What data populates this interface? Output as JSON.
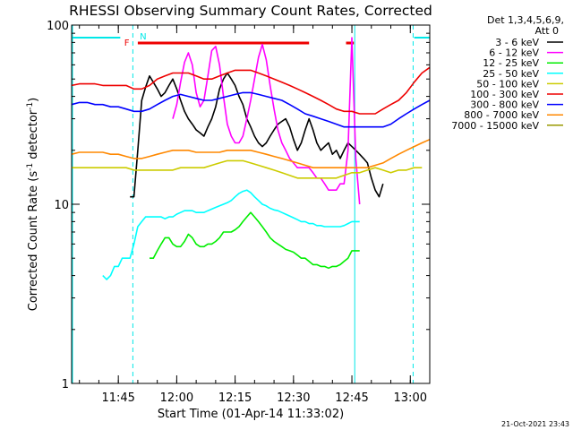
{
  "chart_data": {
    "type": "line",
    "title": "RHESSI Observing Summary Count Rates, Corrected",
    "xlabel": "Start Time (01-Apr-14 11:33:02)",
    "ylabel": {
      "main": "Corrected Count Rate (s",
      "sup1": "-1",
      "mid": " detector",
      "sup2": "-1",
      "end": ")"
    },
    "x_unit": "minutes after 11:33:02",
    "xlim": [
      0,
      92
    ],
    "ylim": [
      1,
      100
    ],
    "y_scale": "log",
    "x_ticks": [
      {
        "x": 12,
        "label": "11:45"
      },
      {
        "x": 27,
        "label": "12:00"
      },
      {
        "x": 42,
        "label": "12:15"
      },
      {
        "x": 57,
        "label": "12:30"
      },
      {
        "x": 72,
        "label": "12:45"
      },
      {
        "x": 87,
        "label": "13:00"
      }
    ],
    "y_ticks": [
      {
        "y": 1,
        "label": "1"
      },
      {
        "y": 10,
        "label": "10"
      },
      {
        "y": 100,
        "label": "100"
      }
    ],
    "legend_header": [
      "Det 1,3,4,5,6,9,",
      "Att 0"
    ],
    "legend_position": "right",
    "grid": false,
    "annotations": {
      "flare_label": "F",
      "night_label": "N",
      "flare_bar_color": "#ee0000",
      "night_bar_color": "#00e8e8"
    },
    "timestamp": "21-Oct-2021 23:43",
    "series": [
      {
        "name": "3 - 6 keV",
        "color": "#000000",
        "x": [
          15,
          16,
          17,
          18,
          19,
          20,
          21,
          22,
          23,
          24,
          25,
          26,
          27,
          28,
          29,
          30,
          31,
          32,
          33,
          34,
          35,
          36,
          37,
          38,
          39,
          40,
          41,
          42,
          43,
          44,
          45,
          46,
          47,
          48,
          49,
          50,
          51,
          52,
          53,
          54,
          55,
          56,
          57,
          58,
          59,
          60,
          61,
          62,
          63,
          64,
          65,
          66,
          67,
          68,
          69,
          70,
          71,
          72,
          73,
          74,
          75,
          76,
          77,
          78,
          79,
          80
        ],
        "y": [
          11,
          11,
          20,
          38,
          45,
          52,
          48,
          44,
          40,
          42,
          46,
          50,
          44,
          38,
          33,
          30,
          28,
          26,
          25,
          24,
          27,
          30,
          35,
          44,
          50,
          54,
          50,
          46,
          40,
          36,
          30,
          27,
          24,
          22,
          21,
          22,
          24,
          26,
          28,
          29,
          30,
          27,
          23,
          20,
          22,
          26,
          30,
          26,
          22,
          20,
          21,
          22,
          19,
          20,
          18,
          20,
          22,
          21,
          20,
          19,
          18,
          17,
          14,
          12,
          11,
          13
        ]
      },
      {
        "name": "6 - 12 keV",
        "color": "#ff00ff",
        "x": [
          26,
          27,
          28,
          29,
          30,
          31,
          32,
          33,
          34,
          35,
          36,
          37,
          38,
          39,
          40,
          41,
          42,
          43,
          44,
          45,
          46,
          47,
          48,
          49,
          50,
          51,
          52,
          53,
          54,
          55,
          56,
          57,
          58,
          59,
          60,
          61,
          62,
          63,
          64,
          65,
          66,
          67,
          68,
          69,
          70,
          71,
          72,
          73,
          74
        ],
        "y": [
          30,
          36,
          48,
          62,
          70,
          60,
          42,
          35,
          38,
          52,
          72,
          76,
          60,
          40,
          28,
          24,
          22,
          22,
          24,
          30,
          38,
          50,
          66,
          78,
          64,
          46,
          34,
          26,
          22,
          20,
          18,
          17,
          16,
          16,
          16,
          16,
          15,
          14,
          14,
          13,
          12,
          12,
          12,
          13,
          13,
          20,
          85,
          18,
          10
        ]
      },
      {
        "name": "12 - 25 keV",
        "color": "#00ee00",
        "x": [
          20,
          21,
          22,
          23,
          24,
          25,
          26,
          27,
          28,
          29,
          30,
          31,
          32,
          33,
          34,
          35,
          36,
          37,
          38,
          39,
          40,
          41,
          42,
          43,
          44,
          45,
          46,
          47,
          48,
          49,
          50,
          51,
          52,
          53,
          54,
          55,
          56,
          57,
          58,
          59,
          60,
          61,
          62,
          63,
          64,
          65,
          66,
          67,
          68,
          69,
          70,
          71,
          72,
          73,
          74
        ],
        "y": [
          5,
          5,
          5.5,
          6,
          6.5,
          6.5,
          6,
          5.8,
          5.8,
          6.2,
          6.8,
          6.5,
          6,
          5.8,
          5.8,
          6,
          6,
          6.2,
          6.5,
          7,
          7,
          7,
          7.2,
          7.5,
          8,
          8.5,
          9,
          8.5,
          8,
          7.5,
          7,
          6.5,
          6.2,
          6,
          5.8,
          5.6,
          5.5,
          5.4,
          5.2,
          5,
          5,
          4.8,
          4.6,
          4.6,
          4.5,
          4.5,
          4.4,
          4.5,
          4.5,
          4.6,
          4.8,
          5,
          5.5,
          5.5,
          5.5
        ]
      },
      {
        "name": "25 - 50 keV",
        "color": "#00ffff",
        "x": [
          8,
          9,
          10,
          11,
          12,
          13,
          14,
          15,
          16,
          17,
          18,
          19,
          20,
          21,
          22,
          23,
          24,
          25,
          26,
          27,
          28,
          29,
          30,
          31,
          32,
          33,
          34,
          35,
          36,
          37,
          38,
          39,
          40,
          41,
          42,
          43,
          44,
          45,
          46,
          47,
          48,
          49,
          50,
          51,
          52,
          53,
          54,
          55,
          56,
          57,
          58,
          59,
          60,
          61,
          62,
          63,
          64,
          65,
          66,
          67,
          68,
          69,
          70,
          71,
          72,
          73,
          74
        ],
        "y": [
          4,
          3.8,
          4,
          4.5,
          4.5,
          5,
          5,
          5,
          6,
          7.5,
          8,
          8.5,
          8.5,
          8.5,
          8.5,
          8.5,
          8.3,
          8.5,
          8.5,
          8.8,
          9,
          9.2,
          9.2,
          9.2,
          9,
          9,
          9,
          9.2,
          9.4,
          9.6,
          9.8,
          10,
          10.2,
          10.5,
          11,
          11.5,
          11.8,
          12,
          11.6,
          11,
          10.5,
          10,
          9.8,
          9.5,
          9.3,
          9.2,
          9,
          8.8,
          8.6,
          8.4,
          8.2,
          8,
          8,
          7.8,
          7.8,
          7.6,
          7.6,
          7.5,
          7.5,
          7.5,
          7.5,
          7.5,
          7.6,
          7.8,
          8,
          8,
          8
        ]
      },
      {
        "name": "50 - 100 keV",
        "color": "#cccc00",
        "x": [
          0,
          2,
          4,
          6,
          8,
          10,
          12,
          14,
          16,
          18,
          20,
          22,
          24,
          26,
          28,
          30,
          32,
          34,
          36,
          38,
          40,
          42,
          44,
          46,
          48,
          50,
          52,
          54,
          56,
          58,
          60,
          62,
          64,
          66,
          68,
          70,
          72,
          74,
          76,
          78,
          80,
          82,
          84,
          86,
          88,
          90
        ],
        "y": [
          16,
          16,
          16,
          16,
          16,
          16,
          16,
          16,
          15.5,
          15.5,
          15.5,
          15.5,
          15.5,
          15.5,
          16,
          16,
          16,
          16,
          16.5,
          17,
          17.5,
          17.5,
          17.5,
          17,
          16.5,
          16,
          15.5,
          15,
          14.5,
          14,
          14,
          14,
          14,
          14,
          14,
          14.5,
          15,
          15,
          15.5,
          16,
          15.5,
          15,
          15.5,
          15.5,
          16,
          16
        ]
      },
      {
        "name": "100 - 300 keV",
        "color": "#ee0000",
        "x": [
          0,
          2,
          4,
          6,
          8,
          10,
          12,
          14,
          16,
          18,
          20,
          22,
          24,
          26,
          28,
          30,
          32,
          34,
          36,
          38,
          40,
          42,
          44,
          46,
          48,
          50,
          52,
          54,
          56,
          58,
          60,
          62,
          64,
          66,
          68,
          70,
          72,
          74,
          76,
          78,
          80,
          82,
          84,
          86,
          88,
          90,
          92
        ],
        "y": [
          46,
          47,
          47,
          47,
          46,
          46,
          46,
          46,
          44,
          44,
          46,
          50,
          52,
          54,
          54,
          54,
          52,
          50,
          50,
          52,
          54,
          56,
          56,
          56,
          54,
          52,
          50,
          48,
          46,
          44,
          42,
          40,
          38,
          36,
          34,
          33,
          33,
          32,
          32,
          32,
          34,
          36,
          38,
          42,
          48,
          54,
          58
        ]
      },
      {
        "name": "300 - 800 keV",
        "color": "#0000ff",
        "x": [
          0,
          2,
          4,
          6,
          8,
          10,
          12,
          14,
          16,
          18,
          20,
          22,
          24,
          26,
          28,
          30,
          32,
          34,
          36,
          38,
          40,
          42,
          44,
          46,
          48,
          50,
          52,
          54,
          56,
          58,
          60,
          62,
          64,
          66,
          68,
          70,
          72,
          74,
          76,
          78,
          80,
          82,
          84,
          86,
          88,
          90,
          92
        ],
        "y": [
          36,
          37,
          37,
          36,
          36,
          35,
          35,
          34,
          33,
          33,
          34,
          36,
          38,
          40,
          41,
          40,
          39,
          38,
          38,
          39,
          40,
          41,
          42,
          42,
          41,
          40,
          39,
          38,
          36,
          34,
          32,
          31,
          30,
          29,
          28,
          27,
          27,
          27,
          27,
          27,
          27,
          28,
          30,
          32,
          34,
          36,
          38
        ]
      },
      {
        "name": "800 - 7000 keV",
        "color": "#ff8800",
        "x": [
          0,
          2,
          4,
          6,
          8,
          10,
          12,
          14,
          16,
          18,
          20,
          22,
          24,
          26,
          28,
          30,
          32,
          34,
          36,
          38,
          40,
          42,
          44,
          46,
          48,
          50,
          52,
          54,
          56,
          58,
          60,
          62,
          64,
          66,
          68,
          70,
          72,
          74,
          76,
          78,
          80,
          82,
          84,
          86,
          88,
          90,
          92
        ],
        "y": [
          19,
          19.5,
          19.5,
          19.5,
          19.5,
          19,
          19,
          18.5,
          18,
          18,
          18.5,
          19,
          19.5,
          20,
          20,
          20,
          19.5,
          19.5,
          19.5,
          19.5,
          20,
          20,
          20,
          20,
          19.5,
          19,
          18.5,
          18,
          17.5,
          17,
          16.5,
          16,
          16,
          16,
          16,
          16,
          16,
          16,
          16,
          16.5,
          17,
          18,
          19,
          20,
          21,
          22,
          23
        ]
      },
      {
        "name": "7000 - 15000 keV",
        "color": "#999900",
        "x": [],
        "y": []
      }
    ]
  }
}
